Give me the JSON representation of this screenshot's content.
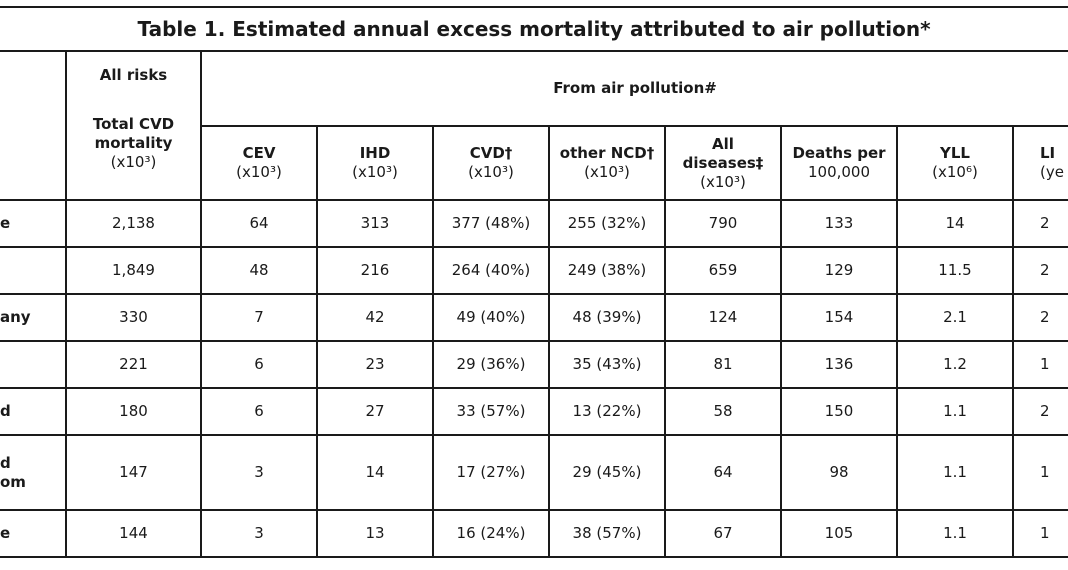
{
  "table": {
    "title": "Table 1. Estimated annual excess mortality attributed to air pollution*",
    "all_risks": "All risks",
    "from_air_pollution": "From air pollution#",
    "columns": [
      {
        "name": [
          "Total CVD",
          "mortality"
        ],
        "unit": "(x10³)"
      },
      {
        "name": [
          "CEV"
        ],
        "unit": "(x10³)"
      },
      {
        "name": [
          "IHD"
        ],
        "unit": "(x10³)"
      },
      {
        "name": [
          "CVD†"
        ],
        "unit": "(x10³)"
      },
      {
        "name": [
          "other NCD†"
        ],
        "unit": "(x10³)"
      },
      {
        "name": [
          "All",
          "diseases‡"
        ],
        "unit": "(x10³)"
      },
      {
        "name": [
          "Deaths per"
        ],
        "unit": "100,000"
      },
      {
        "name": [
          "YLL"
        ],
        "unit": "(x10⁶)"
      },
      {
        "name": [
          "LI"
        ],
        "unit": "(ye"
      }
    ],
    "rows": [
      {
        "label": [
          "e"
        ],
        "cells": [
          "2,138",
          "64",
          "313",
          "377 (48%)",
          "255 (32%)",
          "790",
          "133",
          "14",
          "2"
        ]
      },
      {
        "cells": [
          "1,849",
          "48",
          "216",
          "264 (40%)",
          "249 (38%)",
          "659",
          "129",
          "11.5",
          "2"
        ]
      },
      {
        "label": [
          "any"
        ],
        "cells": [
          "330",
          "7",
          "42",
          "49 (40%)",
          "48 (39%)",
          "124",
          "154",
          "2.1",
          "2"
        ]
      },
      {
        "cells": [
          "221",
          "6",
          "23",
          "29 (36%)",
          "35 (43%)",
          "81",
          "136",
          "1.2",
          "1"
        ]
      },
      {
        "label": [
          "d"
        ],
        "cells": [
          "180",
          "6",
          "27",
          "33 (57%)",
          "13 (22%)",
          "58",
          "150",
          "1.1",
          "2"
        ]
      },
      {
        "label": [
          "d",
          "om"
        ],
        "cells": [
          "147",
          "3",
          "14",
          "17 (27%)",
          "29 (45%)",
          "64",
          "98",
          "1.1",
          "1"
        ]
      },
      {
        "label": [
          "e"
        ],
        "cells": [
          "144",
          "3",
          "13",
          "16 (24%)",
          "38 (57%)",
          "67",
          "105",
          "1.1",
          "1"
        ]
      }
    ]
  }
}
